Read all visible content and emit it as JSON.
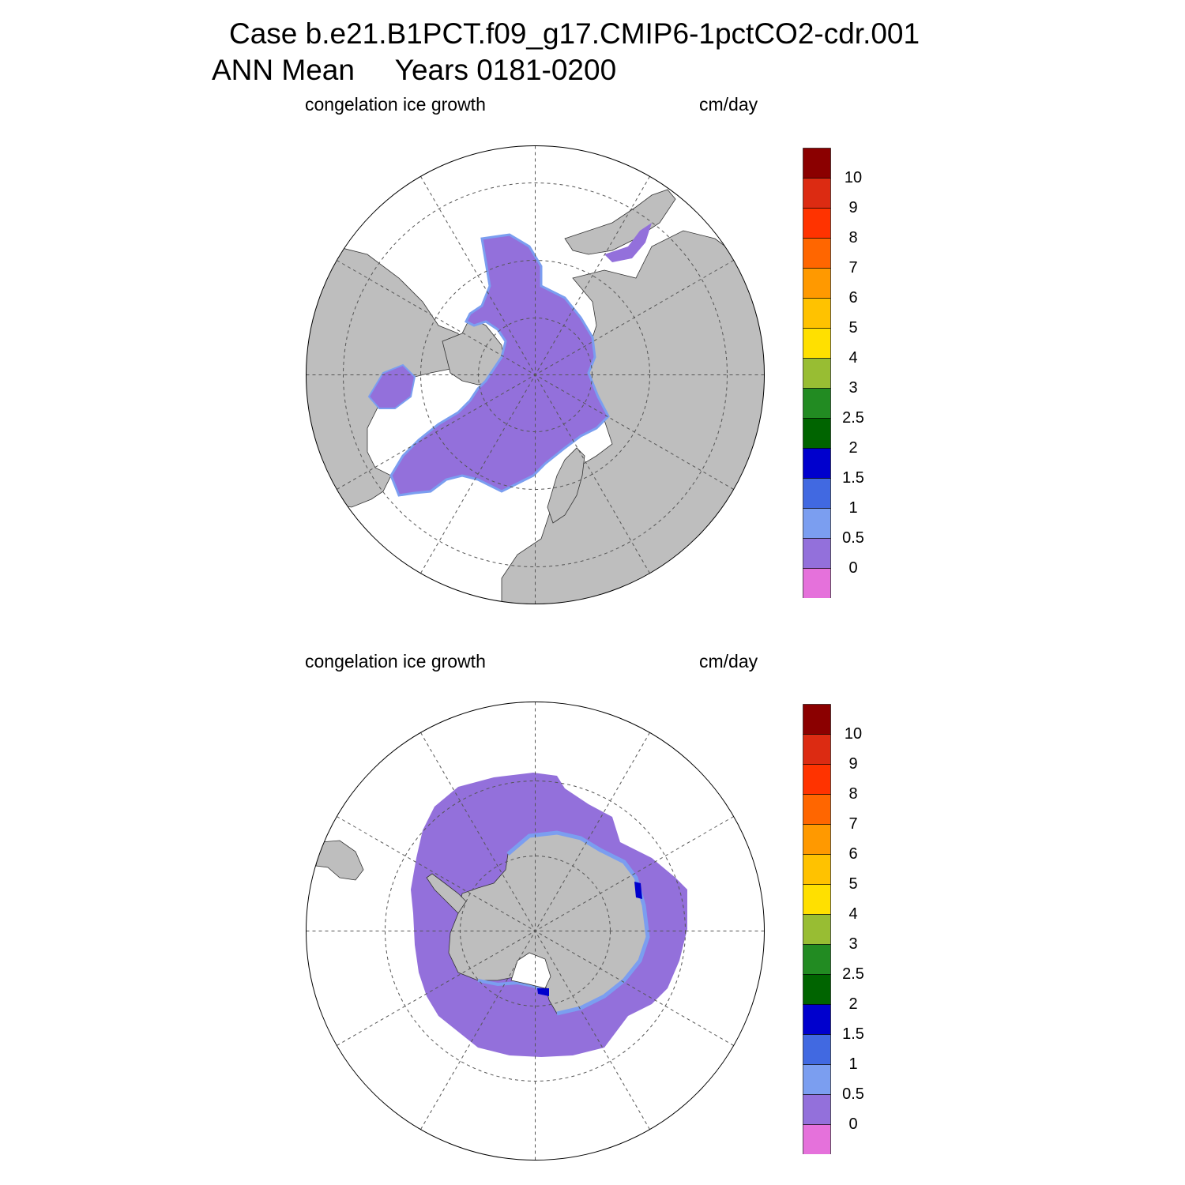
{
  "title_line1": "Case b.e21.B1PCT.f09_g17.CMIP6-1pctCO2-cdr.001",
  "title_line2": "ANN Mean     Years 0181-0200",
  "panels": [
    {
      "hemisphere": "north",
      "variable": "congelation ice growth",
      "units": "cm/day"
    },
    {
      "hemisphere": "south",
      "variable": "congelation ice growth",
      "units": "cm/day"
    }
  ],
  "colorbar": {
    "levels": [
      "0",
      "0.5",
      "1",
      "1.5",
      "2",
      "2.5",
      "3",
      "4",
      "5",
      "6",
      "7",
      "8",
      "9",
      "10"
    ],
    "colors": [
      "#e571db",
      "#9370db",
      "#7b9ef0",
      "#4169e1",
      "#0000cd",
      "#006400",
      "#228b22",
      "#98bd33",
      "#ffe000",
      "#ffc200",
      "#ff9900",
      "#ff6600",
      "#ff3300",
      "#dc2b12",
      "#8b0000"
    ]
  },
  "map_colors": {
    "land": "#bebebe",
    "ice_growth_main": "#9370db",
    "ice_growth_edge": "#7b9ef0",
    "ice_growth_high": "#0000cd",
    "ocean": "#ffffff"
  }
}
